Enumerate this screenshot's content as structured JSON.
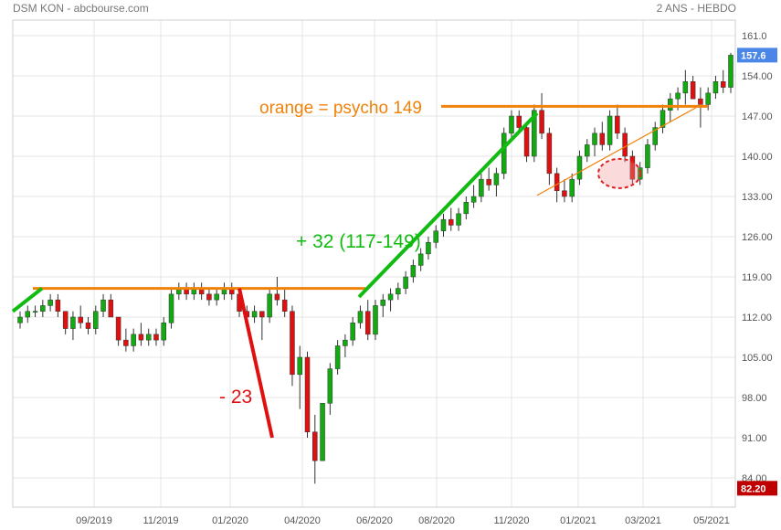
{
  "header": {
    "title": "DSM KON - abcbourse.com",
    "period": "2 ANS - HEBDO"
  },
  "chart_data": {
    "type": "candlestick",
    "title": "DSM KON - abcbourse.com",
    "subtitle": "2 ANS - HEBDO",
    "y_range": [
      82,
      162
    ],
    "y_ticks": [
      84,
      91,
      98,
      105,
      112,
      119,
      126,
      133,
      140,
      147,
      154,
      161
    ],
    "y_tick_labels": [
      "84.00",
      "91.00",
      "98.00",
      "105.00",
      "112.00",
      "119.00",
      "126.00",
      "133.00",
      "140.00",
      "147.00",
      "154.00",
      "161.0"
    ],
    "x_labels": [
      "09/2019",
      "11/2019",
      "01/2020",
      "04/2020",
      "06/2020",
      "08/2020",
      "11/2020",
      "01/2021",
      "03/2021",
      "05/2021"
    ],
    "last_price": "157.6",
    "low_price": "82.20",
    "colors": {
      "up": "#11aa11",
      "down": "#dd1111",
      "orange": "#f0820a",
      "green_line": "#11bb11",
      "red_line": "#e01010",
      "last_badge": "#4a86e8",
      "low_badge": "#c00000"
    },
    "candles": [
      [
        111,
        113,
        110,
        112
      ],
      [
        112,
        114,
        111,
        113
      ],
      [
        113,
        114,
        112,
        113
      ],
      [
        113,
        115,
        112,
        114
      ],
      [
        114,
        116,
        113,
        115
      ],
      [
        115,
        116,
        112,
        113
      ],
      [
        113,
        113,
        109,
        110
      ],
      [
        110,
        113,
        108,
        112
      ],
      [
        112,
        114,
        110,
        111
      ],
      [
        111,
        112,
        109,
        110
      ],
      [
        110,
        114,
        109,
        113
      ],
      [
        113,
        116,
        112,
        115
      ],
      [
        115,
        116,
        112,
        112
      ],
      [
        112,
        112,
        107,
        108
      ],
      [
        108,
        110,
        106,
        107
      ],
      [
        107,
        110,
        106,
        109
      ],
      [
        109,
        111,
        107,
        108
      ],
      [
        108,
        110,
        107,
        109
      ],
      [
        109,
        110,
        107,
        108
      ],
      [
        108,
        112,
        107,
        111
      ],
      [
        111,
        117,
        110,
        116
      ],
      [
        116,
        118,
        115,
        117
      ],
      [
        117,
        118,
        115,
        116
      ],
      [
        116,
        118,
        115,
        117
      ],
      [
        117,
        118,
        115,
        116
      ],
      [
        116,
        117,
        114,
        115
      ],
      [
        115,
        117,
        114,
        116
      ],
      [
        116,
        118,
        115,
        117
      ],
      [
        117,
        118,
        115,
        116
      ],
      [
        116,
        117,
        112,
        113
      ],
      [
        113,
        114,
        110,
        112
      ],
      [
        112,
        114,
        111,
        113
      ],
      [
        113,
        113,
        108,
        112
      ],
      [
        112,
        117,
        111,
        116
      ],
      [
        116,
        119,
        114,
        115
      ],
      [
        115,
        117,
        112,
        113
      ],
      [
        113,
        114,
        100,
        102
      ],
      [
        102,
        107,
        96,
        105
      ],
      [
        105,
        106,
        91,
        92
      ],
      [
        92,
        95,
        83,
        87
      ],
      [
        87,
        97,
        87,
        97
      ],
      [
        97,
        104,
        95,
        103
      ],
      [
        103,
        108,
        102,
        107
      ],
      [
        107,
        109,
        105,
        108
      ],
      [
        108,
        112,
        107,
        111
      ],
      [
        111,
        114,
        110,
        113
      ],
      [
        113,
        115,
        108,
        109
      ],
      [
        109,
        115,
        108,
        114
      ],
      [
        114,
        116,
        112,
        115
      ],
      [
        115,
        117,
        113,
        116
      ],
      [
        116,
        118,
        115,
        117
      ],
      [
        117,
        120,
        116,
        119
      ],
      [
        119,
        122,
        118,
        121
      ],
      [
        121,
        124,
        120,
        123
      ],
      [
        123,
        126,
        122,
        125
      ],
      [
        125,
        128,
        124,
        127
      ],
      [
        127,
        130,
        126,
        129
      ],
      [
        129,
        131,
        127,
        128
      ],
      [
        128,
        131,
        127,
        130
      ],
      [
        130,
        133,
        129,
        132
      ],
      [
        132,
        135,
        131,
        133
      ],
      [
        133,
        137,
        132,
        136
      ],
      [
        136,
        138,
        134,
        135
      ],
      [
        135,
        138,
        133,
        137
      ],
      [
        137,
        145,
        136,
        144
      ],
      [
        144,
        148,
        143,
        147
      ],
      [
        147,
        148,
        144,
        145
      ],
      [
        145,
        146,
        139,
        140
      ],
      [
        140,
        149,
        139,
        148
      ],
      [
        148,
        151,
        143,
        144
      ],
      [
        144,
        145,
        135,
        137
      ],
      [
        137,
        138,
        132,
        134
      ],
      [
        134,
        136,
        132,
        133
      ],
      [
        133,
        137,
        132,
        136
      ],
      [
        136,
        141,
        135,
        140
      ],
      [
        140,
        143,
        139,
        142
      ],
      [
        142,
        145,
        140,
        144
      ],
      [
        144,
        146,
        141,
        142
      ],
      [
        142,
        148,
        141,
        147
      ],
      [
        147,
        149,
        143,
        144
      ],
      [
        144,
        145,
        139,
        140
      ],
      [
        140,
        141,
        135,
        136
      ],
      [
        136,
        139,
        135,
        138
      ],
      [
        138,
        143,
        137,
        142
      ],
      [
        142,
        146,
        141,
        145
      ],
      [
        145,
        149,
        144,
        148
      ],
      [
        148,
        151,
        146,
        150
      ],
      [
        150,
        152,
        148,
        151
      ],
      [
        151,
        155,
        149,
        153
      ],
      [
        153,
        154,
        150,
        150
      ],
      [
        150,
        152,
        145,
        149
      ],
      [
        149,
        152,
        148,
        151
      ],
      [
        151,
        154,
        150,
        153
      ],
      [
        153,
        155,
        151,
        152
      ],
      [
        152,
        158,
        151,
        157.6
      ]
    ],
    "annotations": [
      {
        "text": "orange = psycho 149",
        "color": "#f0820a"
      },
      {
        "text": "+ 32 (117-149)",
        "color": "#11bb11"
      },
      {
        "text": "- 23",
        "color": "#e01010"
      }
    ]
  }
}
